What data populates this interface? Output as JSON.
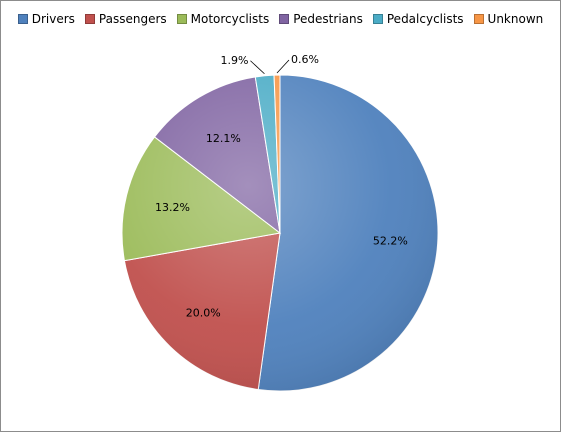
{
  "chart_data": {
    "type": "pie",
    "title": "",
    "start_angle_deg": 0,
    "direction": "clockwise",
    "legend_position": "top",
    "data_label_format": "percent",
    "slices": [
      {
        "name": "Drivers",
        "value": 52.2,
        "label": "52.2%",
        "color": "#4F81BD"
      },
      {
        "name": "Passengers",
        "value": 20.0,
        "label": "20.0%",
        "color": "#C0504D"
      },
      {
        "name": "Motorcyclists",
        "value": 13.2,
        "label": "13.2%",
        "color": "#9BBB59"
      },
      {
        "name": "Pedestrians",
        "value": 12.1,
        "label": "12.1%",
        "color": "#8064A2"
      },
      {
        "name": "Pedalcyclists",
        "value": 1.9,
        "label": "1.9%",
        "color": "#4BACC6"
      },
      {
        "name": "Unknown",
        "value": 0.6,
        "label": "0.6%",
        "color": "#F79646"
      }
    ]
  }
}
